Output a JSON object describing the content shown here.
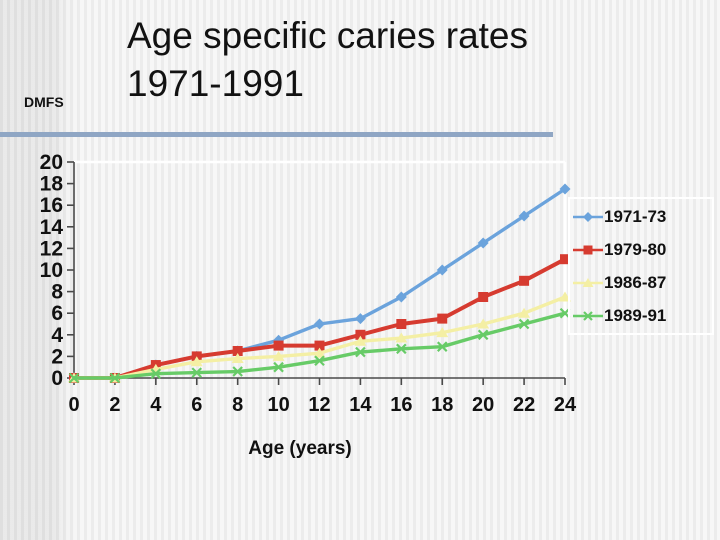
{
  "slide": {
    "title_line1": "Age specific caries rates",
    "title_line2": "1971-1991",
    "unit_label": "DMFS",
    "divider_color": "#8FA6C4"
  },
  "chart_data": {
    "type": "line",
    "title": "Age specific caries rates 1971-1991",
    "xlabel": "Age (years)",
    "ylabel": "DMFS",
    "x": [
      0,
      2,
      4,
      6,
      8,
      10,
      12,
      14,
      16,
      18,
      20,
      22,
      24
    ],
    "ylim": [
      0,
      20
    ],
    "ytick_step": 2,
    "grid": "top-white-line-and-right-border-only",
    "legend_position": "right",
    "series": [
      {
        "name": "1971-73",
        "color": "#6BA3DC",
        "marker": "diamond",
        "values": [
          0,
          0,
          1.2,
          2,
          2.5,
          3.5,
          5,
          5.5,
          7.5,
          10,
          12.5,
          15,
          17.5
        ]
      },
      {
        "name": "1979-80",
        "color": "#D63B30",
        "marker": "square",
        "values": [
          0,
          0,
          1.2,
          2,
          2.5,
          3,
          3,
          4,
          5,
          5.5,
          7.5,
          9,
          11
        ]
      },
      {
        "name": "1986-87",
        "color": "#F4EFA4",
        "marker": "triangle",
        "values": [
          0,
          0,
          0.8,
          1.5,
          1.8,
          2,
          2.3,
          3.4,
          3.7,
          4.2,
          5,
          6,
          7.5
        ]
      },
      {
        "name": "1989-91",
        "color": "#67CB67",
        "marker": "x",
        "values": [
          0,
          0,
          0.4,
          0.5,
          0.6,
          1,
          1.6,
          2.4,
          2.7,
          2.9,
          4,
          5,
          6
        ]
      }
    ]
  }
}
